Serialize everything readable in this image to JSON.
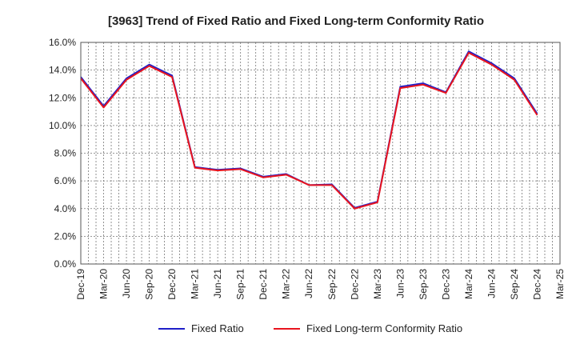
{
  "chart_data": {
    "type": "line",
    "title": "[3963]  Trend of Fixed Ratio and Fixed Long-term Conformity Ratio",
    "xlabel": "",
    "ylabel": "",
    "ylim": [
      0,
      16
    ],
    "yticks": [
      "0.0%",
      "2.0%",
      "4.0%",
      "6.0%",
      "8.0%",
      "10.0%",
      "12.0%",
      "14.0%",
      "16.0%"
    ],
    "categories": [
      "Dec-19",
      "Mar-20",
      "Jun-20",
      "Sep-20",
      "Dec-20",
      "Mar-21",
      "Jun-21",
      "Sep-21",
      "Dec-21",
      "Mar-22",
      "Jun-22",
      "Sep-22",
      "Dec-22",
      "Mar-23",
      "Jun-23",
      "Sep-23",
      "Dec-23",
      "Mar-24",
      "Jun-24",
      "Sep-24",
      "Dec-24",
      "Mar-25"
    ],
    "grid": true,
    "legend_position": "bottom",
    "series": [
      {
        "name": "Fixed Ratio",
        "color": "#1f1fc8",
        "values": [
          13.5,
          11.4,
          13.4,
          14.4,
          13.6,
          7.0,
          6.8,
          6.9,
          6.3,
          6.5,
          5.7,
          5.75,
          4.05,
          4.5,
          12.8,
          13.05,
          12.4,
          15.35,
          14.5,
          13.4,
          10.85,
          null
        ]
      },
      {
        "name": "Fixed Long-term Conformity Ratio",
        "color": "#e8141e",
        "values": [
          13.4,
          11.3,
          13.3,
          14.3,
          13.5,
          6.95,
          6.75,
          6.85,
          6.25,
          6.45,
          5.7,
          5.7,
          4.0,
          4.45,
          12.7,
          12.95,
          12.35,
          15.25,
          14.4,
          13.3,
          10.75,
          null
        ]
      }
    ]
  }
}
